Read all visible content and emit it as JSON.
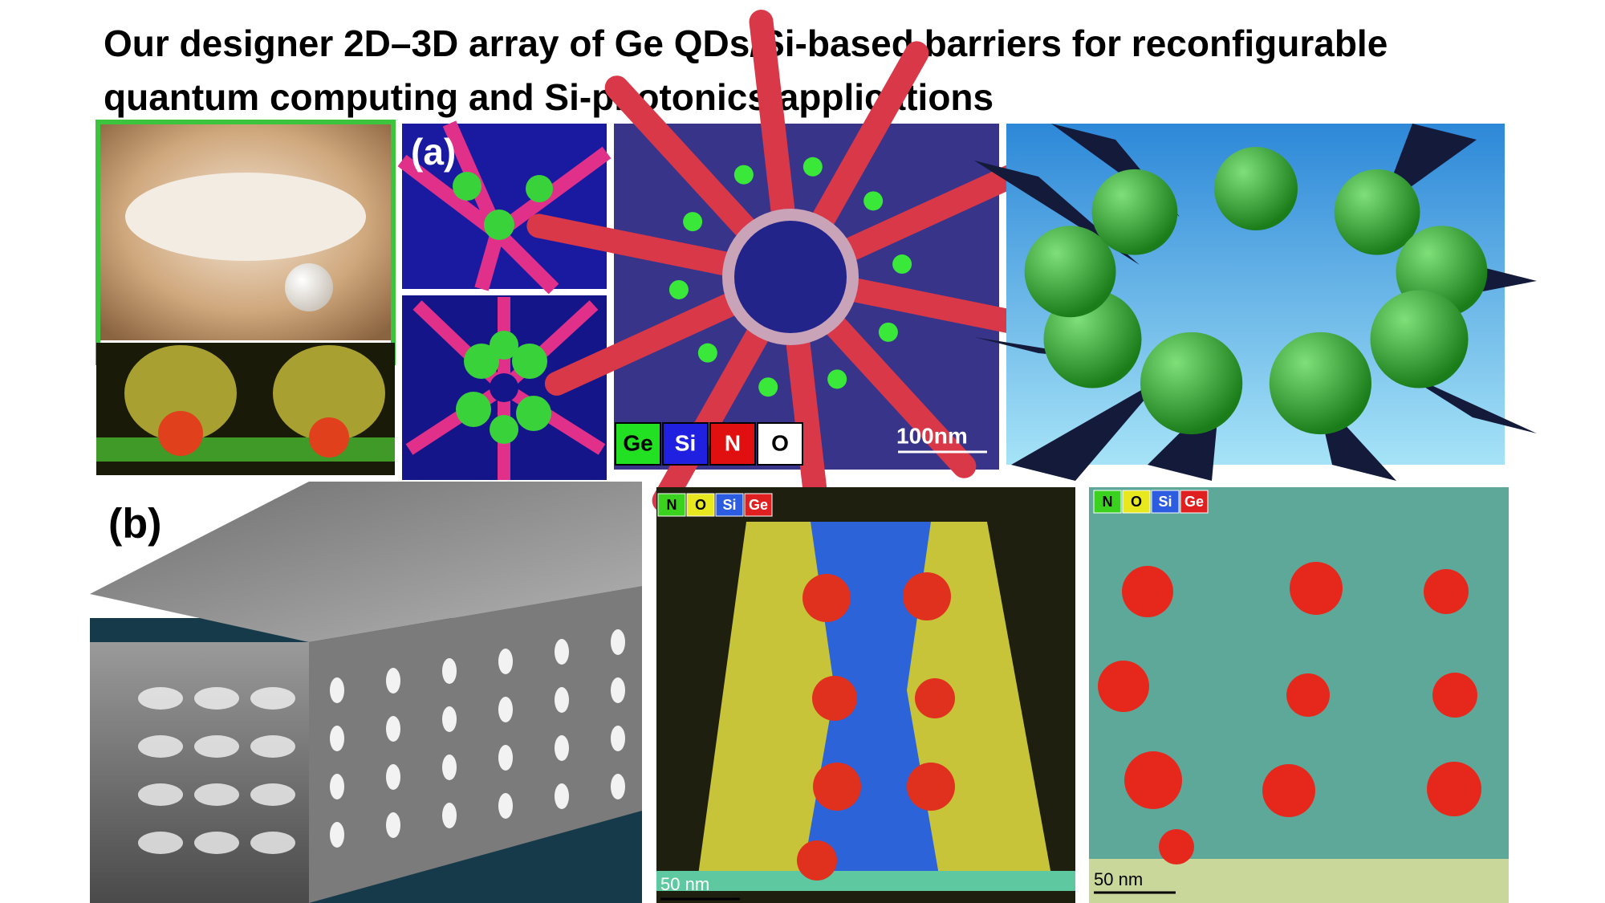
{
  "title_lines": [
    "Our designer 2D–3D array of Ge QDs/Si-based barriers for reconfigurable",
    "quantum computing and Si-photonics applications"
  ],
  "panel_a": {
    "label": "(a)",
    "legend": [
      "Ge",
      "Si",
      "N",
      "O"
    ],
    "scale_bar": "100nm"
  },
  "panel_b": {
    "label": "(b)",
    "left_map": {
      "legend": [
        "N",
        "O",
        "Si",
        "Ge"
      ],
      "scale_bar": "50 nm"
    },
    "right_map": {
      "legend": [
        "N",
        "O",
        "Si",
        "Ge"
      ],
      "scale_bar": "50 nm"
    }
  }
}
